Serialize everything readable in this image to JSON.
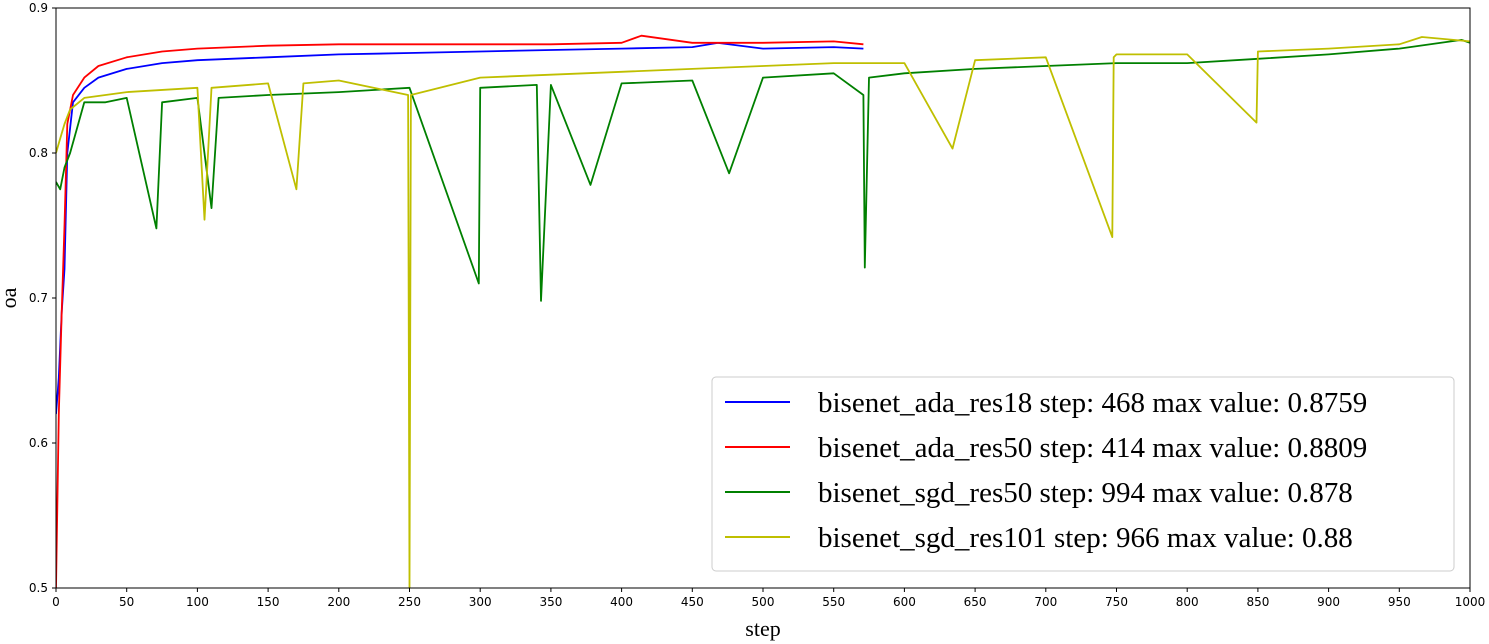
{
  "chart_data": {
    "type": "line",
    "title": "",
    "xlabel": "step",
    "ylabel": "oa",
    "xlim": [
      0,
      1000
    ],
    "ylim": [
      0.5,
      0.9
    ],
    "xticks": [
      0,
      50,
      100,
      150,
      200,
      250,
      300,
      350,
      400,
      450,
      500,
      550,
      600,
      650,
      700,
      750,
      800,
      850,
      900,
      950,
      1000
    ],
    "yticks": [
      0.5,
      0.6,
      0.7,
      0.8,
      0.9
    ],
    "grid": false,
    "legend_position": "lower-right",
    "series": [
      {
        "name": "bisenet_ada_res18 step: 468 max value: 0.8759",
        "color": "#0000ff",
        "x": [
          0,
          2,
          4,
          6,
          8,
          12,
          20,
          30,
          50,
          75,
          100,
          150,
          200,
          250,
          300,
          350,
          400,
          450,
          468,
          500,
          550,
          571
        ],
        "y": [
          0.62,
          0.645,
          0.69,
          0.72,
          0.8,
          0.835,
          0.845,
          0.852,
          0.858,
          0.862,
          0.864,
          0.866,
          0.868,
          0.869,
          0.87,
          0.871,
          0.872,
          0.873,
          0.8759,
          0.872,
          0.873,
          0.872
        ]
      },
      {
        "name": "bisenet_ada_res50 step: 414 max value: 0.8809",
        "color": "#ff0000",
        "x": [
          0,
          2,
          4,
          6,
          8,
          12,
          20,
          30,
          50,
          75,
          100,
          150,
          200,
          250,
          300,
          350,
          400,
          414,
          450,
          500,
          550,
          571
        ],
        "y": [
          0.5,
          0.62,
          0.69,
          0.75,
          0.82,
          0.84,
          0.852,
          0.86,
          0.866,
          0.87,
          0.872,
          0.874,
          0.875,
          0.875,
          0.875,
          0.875,
          0.876,
          0.8809,
          0.876,
          0.876,
          0.877,
          0.875
        ]
      },
      {
        "name": "bisenet_sgd_res50 step: 994 max value: 0.878",
        "color": "#008000",
        "x": [
          0,
          3,
          6,
          10,
          20,
          35,
          50,
          71,
          75,
          100,
          110,
          115,
          150,
          200,
          250,
          299,
          300,
          340,
          343,
          350,
          378,
          400,
          450,
          476,
          500,
          550,
          571,
          572,
          575,
          600,
          650,
          700,
          750,
          800,
          850,
          900,
          950,
          994,
          1000
        ],
        "y": [
          0.78,
          0.775,
          0.79,
          0.8,
          0.835,
          0.835,
          0.838,
          0.748,
          0.835,
          0.838,
          0.762,
          0.838,
          0.84,
          0.842,
          0.845,
          0.71,
          0.845,
          0.847,
          0.698,
          0.847,
          0.778,
          0.848,
          0.85,
          0.786,
          0.852,
          0.855,
          0.84,
          0.721,
          0.852,
          0.855,
          0.858,
          0.86,
          0.862,
          0.862,
          0.865,
          0.868,
          0.872,
          0.878,
          0.876
        ]
      },
      {
        "name": "bisenet_sgd_res101 step: 966 max value: 0.88",
        "color": "#bfbf00",
        "x": [
          0,
          3,
          6,
          10,
          20,
          50,
          100,
          105,
          110,
          150,
          170,
          175,
          200,
          249,
          250,
          251,
          300,
          350,
          400,
          450,
          500,
          550,
          600,
          634,
          650,
          700,
          747,
          748,
          750,
          800,
          849,
          850,
          900,
          950,
          966,
          1000
        ],
        "y": [
          0.8,
          0.81,
          0.82,
          0.83,
          0.838,
          0.842,
          0.845,
          0.754,
          0.845,
          0.848,
          0.775,
          0.848,
          0.85,
          0.84,
          0.5,
          0.84,
          0.852,
          0.854,
          0.856,
          0.858,
          0.86,
          0.862,
          0.862,
          0.803,
          0.864,
          0.866,
          0.742,
          0.866,
          0.868,
          0.868,
          0.821,
          0.87,
          0.872,
          0.875,
          0.88,
          0.877
        ]
      }
    ]
  }
}
